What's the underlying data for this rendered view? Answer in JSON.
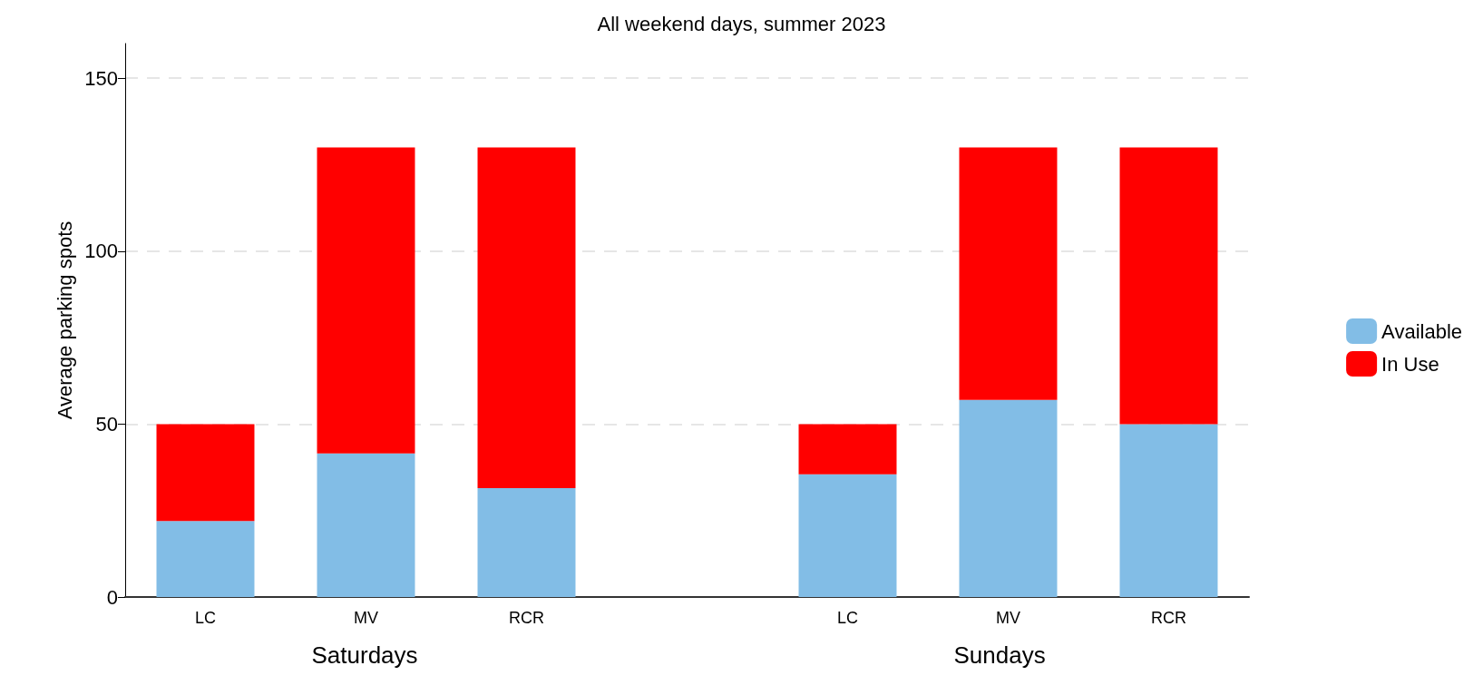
{
  "chart_data": {
    "type": "bar",
    "title": "All weekend days, summer 2023",
    "ylabel": "Average parking spots",
    "categories": [
      "LC",
      "MV",
      "RCR",
      null,
      "LC",
      "MV",
      "RCR"
    ],
    "series": [
      {
        "name": "Available",
        "color": "#82bde6",
        "values": [
          22,
          41.5,
          31.5,
          null,
          35.5,
          57,
          50
        ]
      },
      {
        "name": "In Use",
        "color": "#ff0000",
        "values": [
          28,
          88.5,
          98.5,
          null,
          14.5,
          73,
          80
        ]
      }
    ],
    "stacked": true,
    "ylim": [
      0,
      160
    ],
    "yticks": [
      0,
      50,
      100,
      150
    ],
    "grid": "y",
    "legend": "right",
    "annotations": [
      "Saturdays",
      "Sundays"
    ]
  }
}
